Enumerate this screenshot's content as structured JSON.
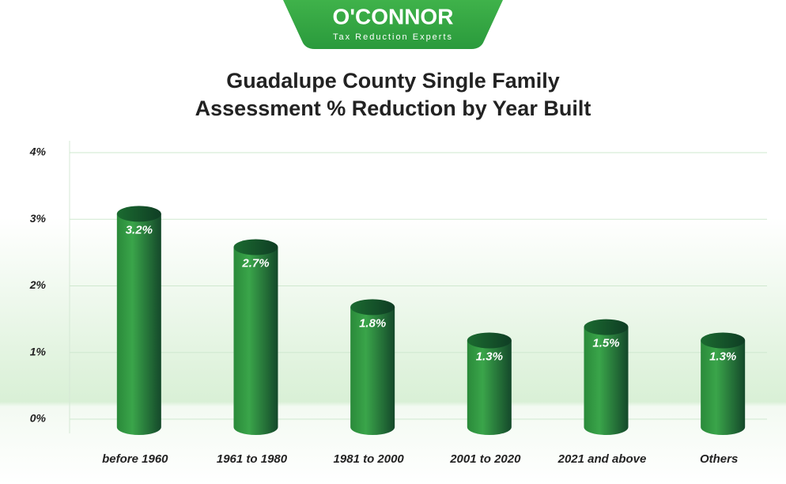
{
  "brand": {
    "name": "O'CONNOR",
    "tagline": "Tax Reduction Experts"
  },
  "chart_data": {
    "type": "cylinder",
    "title": [
      "Guadalupe County Single Family",
      "Assessment % Reduction by Year Built"
    ],
    "categories": [
      "before 1960",
      "1961 to 1980",
      "1981 to 2000",
      "2001 to 2020",
      "2021 and above",
      "Others"
    ],
    "values": [
      3.2,
      2.7,
      1.8,
      1.3,
      1.5,
      1.3
    ],
    "value_labels": [
      "3.2%",
      "2.7%",
      "1.8%",
      "1.3%",
      "1.5%",
      "1.3%"
    ],
    "color": "#2e8b3e",
    "ylim": [
      0,
      4
    ],
    "yticks": [
      {
        "value": 0,
        "label": "0%"
      },
      {
        "value": 1,
        "label": "1%"
      },
      {
        "value": 2,
        "label": "2%"
      },
      {
        "value": 3,
        "label": "3%"
      },
      {
        "value": 4,
        "label": "4%"
      }
    ],
    "grid": true
  }
}
